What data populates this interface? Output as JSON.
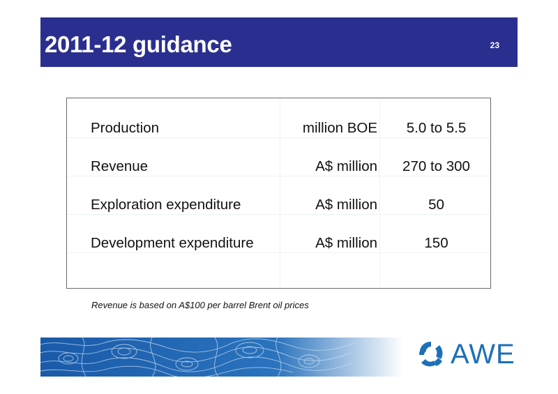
{
  "slide": {
    "title": "2011-12 guidance",
    "page_number": "23"
  },
  "guidance_table": {
    "rows": [
      {
        "label": "Production",
        "unit": "million BOE",
        "value": "5.0 to 5.5"
      },
      {
        "label": "Revenue",
        "unit": "A$ million",
        "value": "270 to 300"
      },
      {
        "label": "Exploration expenditure",
        "unit": "A$ million",
        "value": "50"
      },
      {
        "label": "Development expenditure",
        "unit": "A$ million",
        "value": "150"
      }
    ]
  },
  "footnote": "Revenue is based on A$100 per barrel Brent oil prices",
  "logo": {
    "text": "AWE",
    "icon": "awe-logo-icon"
  },
  "colors": {
    "header_bg": "#2a2f8f",
    "header_text": "#ffffff",
    "logo_blue": "#1d6fb6",
    "band_blue": "#1a5aa8"
  }
}
